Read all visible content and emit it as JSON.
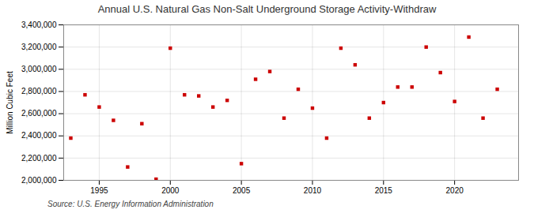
{
  "chart_data": {
    "type": "scatter",
    "title": "Annual U.S. Natural Gas Non-Salt Underground Storage Activity-Withdraw",
    "ylabel": "Million Cubic Feet",
    "source": "Source: U.S. Energy Information Administration",
    "x": [
      1993,
      1994,
      1995,
      1996,
      1997,
      1998,
      1999,
      2000,
      2001,
      2002,
      2003,
      2004,
      2005,
      2006,
      2007,
      2008,
      2009,
      2010,
      2011,
      2012,
      2013,
      2014,
      2015,
      2016,
      2017,
      2018,
      2019,
      2020,
      2021,
      2022,
      2023
    ],
    "values": [
      2380000,
      2770000,
      2660000,
      2540000,
      2120000,
      2510000,
      2010000,
      3190000,
      2770000,
      2760000,
      2660000,
      2720000,
      2150000,
      2910000,
      2980000,
      2560000,
      2820000,
      2650000,
      2380000,
      3190000,
      3040000,
      2560000,
      2700000,
      2840000,
      2840000,
      3200000,
      2970000,
      2710000,
      3290000,
      2560000,
      2820000
    ],
    "color": "#cc0000",
    "marker": "square",
    "xlim": [
      1992.5,
      2024.5
    ],
    "xticks": [
      1995,
      2000,
      2005,
      2010,
      2015,
      2020
    ],
    "ylim": [
      2000000,
      3400000
    ],
    "yticks": [
      {
        "value": 2000000,
        "label": "2,000,000"
      },
      {
        "value": 2200000,
        "label": "2,200,000"
      },
      {
        "value": 2400000,
        "label": "2,400,000"
      },
      {
        "value": 2600000,
        "label": "2,600,000"
      },
      {
        "value": 2800000,
        "label": "2,800,000"
      },
      {
        "value": 3000000,
        "label": "3,000,000"
      },
      {
        "value": 3200000,
        "label": "3,200,000"
      },
      {
        "value": 3400000,
        "label": "3,400,000"
      }
    ],
    "grid": true
  }
}
